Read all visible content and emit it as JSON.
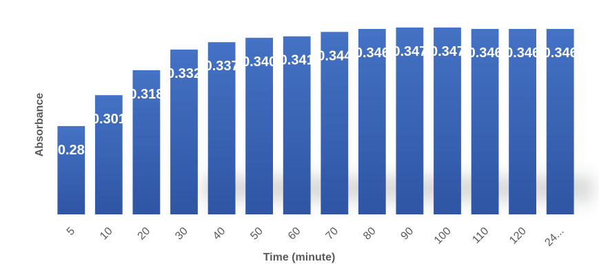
{
  "chart_data": {
    "type": "bar",
    "title": "",
    "xlabel": "Time (minute)",
    "ylabel": "Absorbance",
    "categories": [
      "5",
      "10",
      "20",
      "30",
      "40",
      "50",
      "60",
      "70",
      "80",
      "90",
      "100",
      "110",
      "120",
      "24..."
    ],
    "values": [
      0.28,
      0.301,
      0.318,
      0.332,
      0.337,
      0.34,
      0.341,
      0.344,
      0.346,
      0.347,
      0.347,
      0.346,
      0.346,
      0.346
    ],
    "data_labels": [
      "0.28",
      "0.301",
      "0.318",
      "0.332",
      "0.337",
      "0.340",
      "0.341",
      "0.344",
      "0.346",
      "0.347",
      "0.347",
      "0.346",
      "0.346",
      "0.346"
    ],
    "ylim": [
      0.22,
      0.346
    ],
    "grid": false,
    "legend": "none",
    "bar_color": "#4472C4",
    "bar_color_dark": "#2F55A4"
  }
}
